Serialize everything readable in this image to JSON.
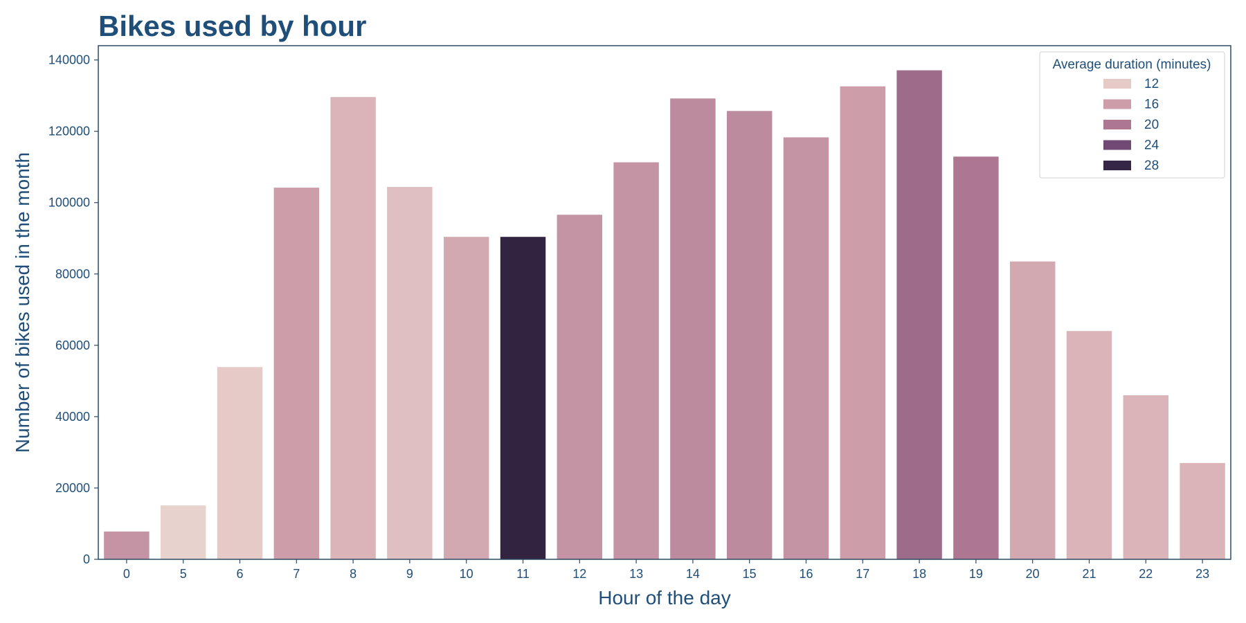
{
  "chart_data": {
    "type": "bar",
    "title": "Bikes used by hour",
    "xlabel": "Hour of the day",
    "ylabel": "Number of bikes used in the month",
    "categories": [
      "0",
      "5",
      "6",
      "7",
      "8",
      "9",
      "10",
      "11",
      "12",
      "13",
      "14",
      "15",
      "16",
      "17",
      "18",
      "19",
      "20",
      "21",
      "22",
      "23"
    ],
    "values": [
      7800,
      15100,
      53900,
      104200,
      129600,
      104400,
      90400,
      90400,
      96600,
      111300,
      129200,
      125700,
      118300,
      132600,
      137100,
      112900,
      83500,
      64000,
      46000,
      27000
    ],
    "durations": [
      17,
      11,
      12,
      16,
      14,
      13,
      15,
      29,
      17,
      17,
      18,
      18,
      17,
      16,
      21,
      20,
      15,
      14,
      14,
      14
    ],
    "ylim": [
      0,
      144000
    ],
    "yticks": [
      0,
      20000,
      40000,
      60000,
      80000,
      100000,
      120000,
      140000
    ],
    "grid": false,
    "legend": {
      "title": "Average duration (minutes)",
      "placement": "top-right",
      "entries": [
        {
          "label": "12",
          "color": "#e6cac7"
        },
        {
          "label": "16",
          "color": "#cd9eaa"
        },
        {
          "label": "20",
          "color": "#ad7792"
        },
        {
          "label": "24",
          "color": "#724974"
        },
        {
          "label": "28",
          "color": "#352646"
        }
      ]
    },
    "colors": {
      "axis": "#2b4a66",
      "text": "#1f4e79",
      "palette_light": "#ead9d4",
      "palette_dark": "#2f2239"
    }
  }
}
